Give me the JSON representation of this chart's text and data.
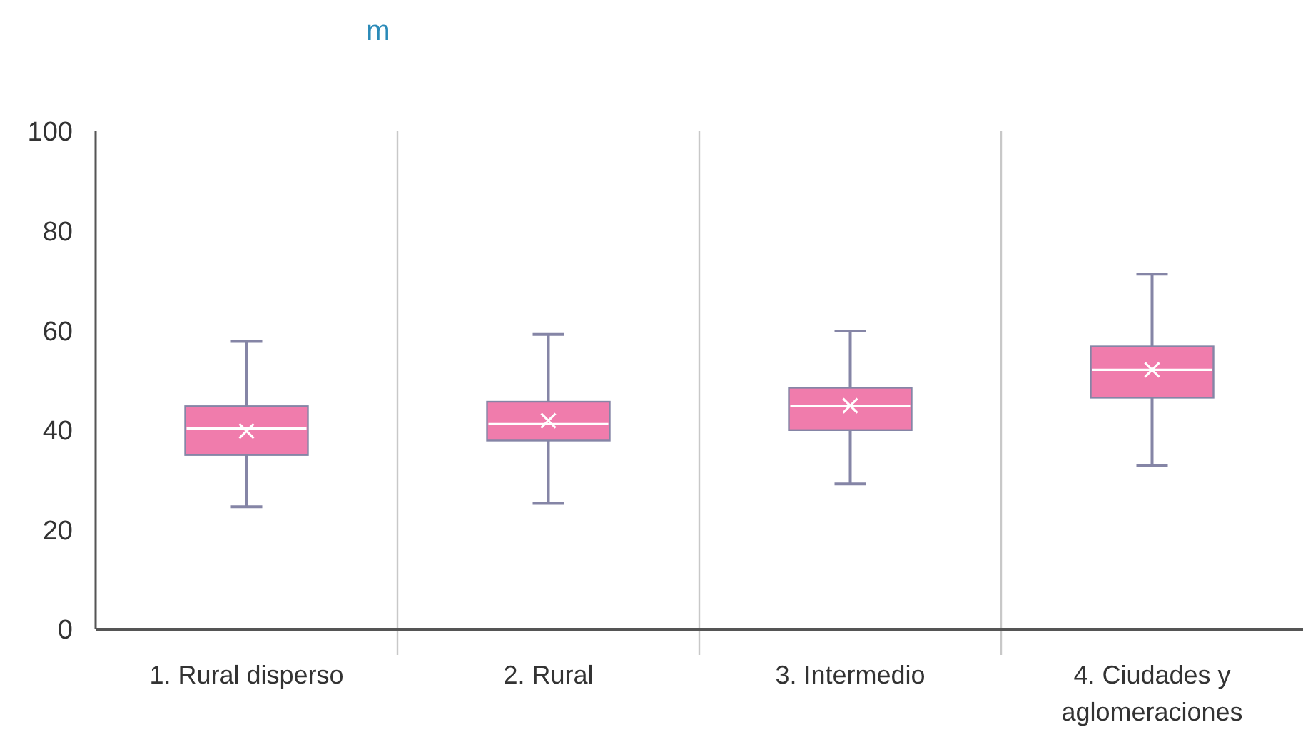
{
  "chart_data": {
    "type": "box",
    "title": "m",
    "categories": [
      "1. Rural disperso",
      "2. Rural",
      "3. Intermedio",
      "4. Ciudades y aglomeraciones"
    ],
    "boxes": [
      {
        "low": 24.6,
        "q1": 35,
        "median": 40.3,
        "q3": 44.8,
        "high": 57.8,
        "mean": 39.8
      },
      {
        "low": 25.3,
        "q1": 37.9,
        "median": 41.2,
        "q3": 45.7,
        "high": 59.2,
        "mean": 41.9
      },
      {
        "low": 29.2,
        "q1": 40,
        "median": 44.9,
        "q3": 48.5,
        "high": 59.9,
        "mean": 44.9
      },
      {
        "low": 32.9,
        "q1": 46.5,
        "median": 52.1,
        "q3": 56.8,
        "high": 71.3,
        "mean": 52.1
      }
    ],
    "color": "#f07cac",
    "ylim": [
      0,
      100
    ],
    "yticks": [
      0,
      20,
      40,
      60,
      80,
      100
    ],
    "grid": false
  }
}
